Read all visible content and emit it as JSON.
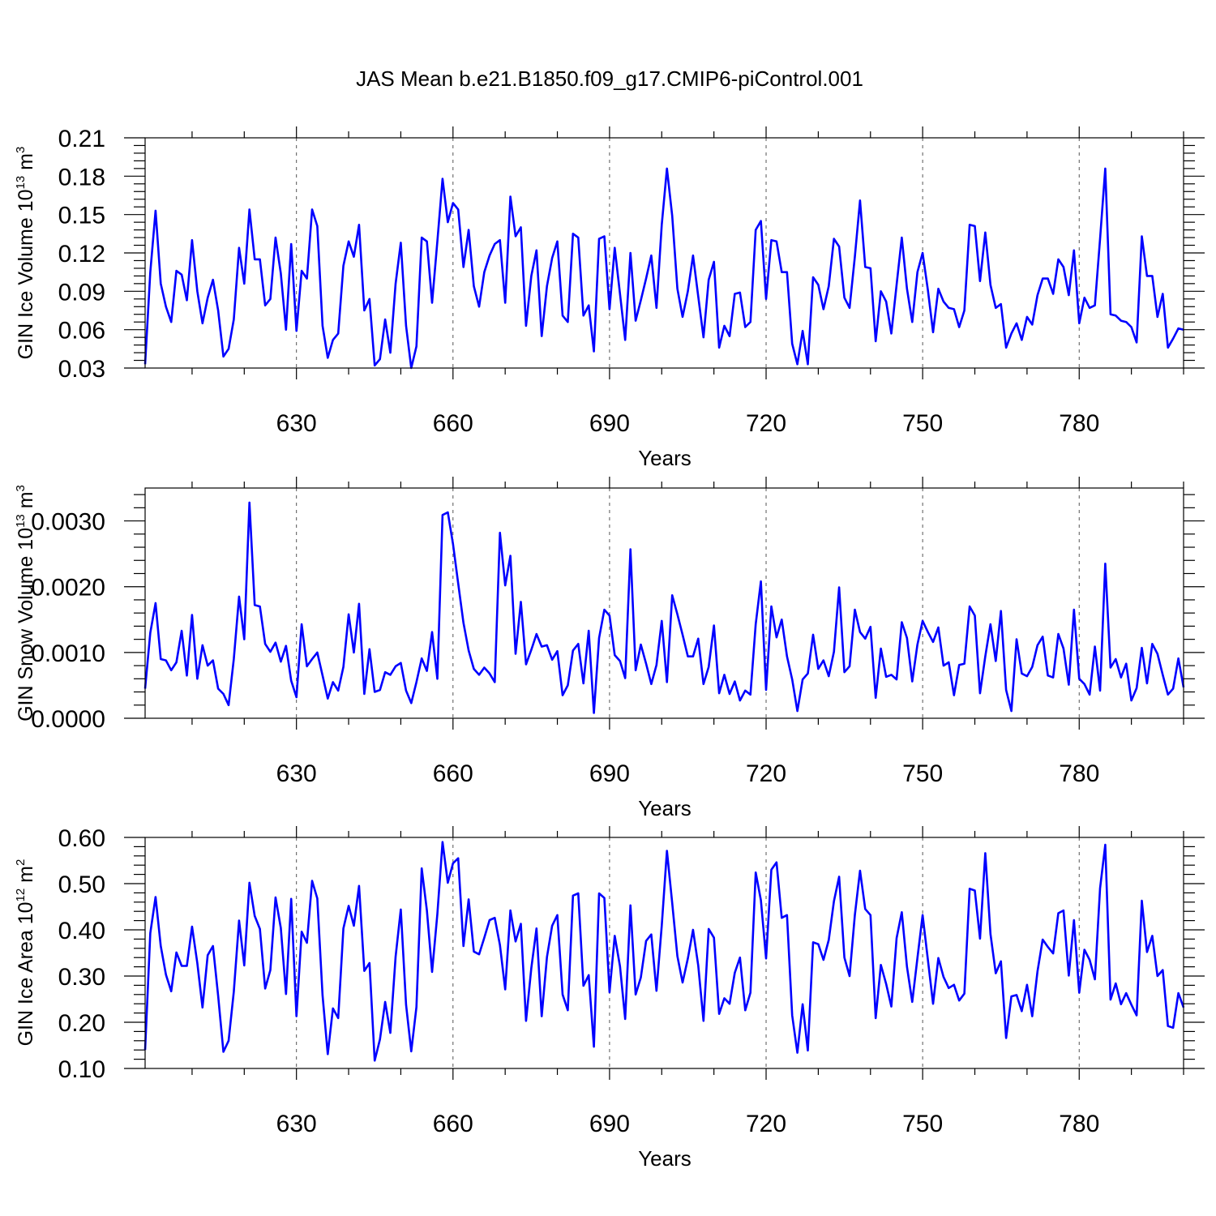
{
  "figure": {
    "title": "JAS Mean b.e21.B1850.f09_g17.CMIP6-piControl.001"
  },
  "chart_data": [
    {
      "type": "line",
      "ylabel_main": "GIN Ice Volume 10",
      "ylabel_exp": "13",
      "ylabel_unit": " m",
      "ylabel_unit_exp": "3",
      "xlabel": "Years",
      "x_start": 601,
      "xlim": [
        601,
        800
      ],
      "ylim": [
        0.03,
        0.21
      ],
      "yticks": [
        "0.03",
        "0.06",
        "0.09",
        "0.12",
        "0.15",
        "0.18",
        "0.21"
      ],
      "xticks": [
        "630",
        "660",
        "690",
        "720",
        "750",
        "780"
      ],
      "color": "#0000ff",
      "values": [
        0.033,
        0.105,
        0.153,
        0.096,
        0.078,
        0.066,
        0.106,
        0.103,
        0.083,
        0.13,
        0.09,
        0.065,
        0.085,
        0.099,
        0.075,
        0.039,
        0.045,
        0.068,
        0.124,
        0.096,
        0.154,
        0.115,
        0.115,
        0.079,
        0.084,
        0.132,
        0.104,
        0.06,
        0.127,
        0.059,
        0.106,
        0.1,
        0.154,
        0.141,
        0.063,
        0.038,
        0.052,
        0.057,
        0.11,
        0.129,
        0.117,
        0.142,
        0.075,
        0.084,
        0.032,
        0.037,
        0.068,
        0.042,
        0.096,
        0.128,
        0.063,
        0.03,
        0.047,
        0.132,
        0.129,
        0.081,
        0.129,
        0.178,
        0.144,
        0.159,
        0.154,
        0.109,
        0.138,
        0.094,
        0.078,
        0.105,
        0.118,
        0.127,
        0.13,
        0.081,
        0.164,
        0.133,
        0.14,
        0.063,
        0.102,
        0.122,
        0.055,
        0.094,
        0.116,
        0.129,
        0.071,
        0.066,
        0.135,
        0.132,
        0.071,
        0.079,
        0.043,
        0.131,
        0.133,
        0.076,
        0.124,
        0.088,
        0.052,
        0.12,
        0.067,
        0.083,
        0.1,
        0.118,
        0.077,
        0.142,
        0.186,
        0.149,
        0.092,
        0.07,
        0.09,
        0.118,
        0.086,
        0.054,
        0.099,
        0.113,
        0.046,
        0.063,
        0.055,
        0.088,
        0.089,
        0.062,
        0.066,
        0.138,
        0.145,
        0.084,
        0.13,
        0.129,
        0.105,
        0.105,
        0.049,
        0.033,
        0.059,
        0.033,
        0.101,
        0.095,
        0.076,
        0.094,
        0.131,
        0.125,
        0.085,
        0.077,
        0.117,
        0.161,
        0.109,
        0.108,
        0.051,
        0.09,
        0.082,
        0.057,
        0.095,
        0.132,
        0.092,
        0.066,
        0.105,
        0.12,
        0.091,
        0.058,
        0.092,
        0.082,
        0.077,
        0.076,
        0.062,
        0.075,
        0.142,
        0.141,
        0.098,
        0.136,
        0.095,
        0.077,
        0.08,
        0.046,
        0.057,
        0.065,
        0.052,
        0.07,
        0.064,
        0.087,
        0.1,
        0.1,
        0.088,
        0.115,
        0.109,
        0.087,
        0.122,
        0.065,
        0.085,
        0.077,
        0.079,
        0.131,
        0.186,
        0.072,
        0.071,
        0.067,
        0.066,
        0.062,
        0.05,
        0.133,
        0.102,
        0.102,
        0.07,
        0.088,
        0.046,
        0.053,
        0.061,
        0.06
      ]
    },
    {
      "type": "line",
      "ylabel_main": "GIN Snow Volume 10",
      "ylabel_exp": "13",
      "ylabel_unit": " m",
      "ylabel_unit_exp": "3",
      "xlabel": "Years",
      "x_start": 601,
      "xlim": [
        601,
        800
      ],
      "ylim": [
        0.0,
        0.0035
      ],
      "yticks": [
        "0.0000",
        "0.0010",
        "0.0020",
        "0.0030"
      ],
      "ytick_values": [
        0.0,
        0.001,
        0.002,
        0.003
      ],
      "xticks": [
        "630",
        "660",
        "690",
        "720",
        "750",
        "780"
      ],
      "color": "#0000ff",
      "values": [
        0.00045,
        0.0013,
        0.00175,
        0.0009,
        0.00088,
        0.00073,
        0.00085,
        0.00133,
        0.00065,
        0.00157,
        0.0006,
        0.00111,
        0.0008,
        0.00088,
        0.00045,
        0.00037,
        0.0002,
        0.0009,
        0.00185,
        0.0012,
        0.00328,
        0.00172,
        0.0017,
        0.00113,
        0.00101,
        0.00115,
        0.00086,
        0.0011,
        0.00057,
        0.00032,
        0.00143,
        0.00079,
        0.0009,
        0.001,
        0.00065,
        0.0003,
        0.00055,
        0.00042,
        0.00078,
        0.00158,
        0.001,
        0.00174,
        0.00037,
        0.00105,
        0.0004,
        0.00043,
        0.0007,
        0.00066,
        0.00079,
        0.00084,
        0.00042,
        0.00023,
        0.00055,
        0.00091,
        0.00072,
        0.00131,
        0.0006,
        0.00309,
        0.00313,
        0.00265,
        0.00205,
        0.00145,
        0.00103,
        0.00075,
        0.00066,
        0.00077,
        0.00068,
        0.00055,
        0.00282,
        0.00202,
        0.00247,
        0.00098,
        0.00177,
        0.00082,
        0.00104,
        0.00128,
        0.00109,
        0.00111,
        0.00089,
        0.00102,
        0.00035,
        0.0005,
        0.00103,
        0.00113,
        0.00053,
        0.00133,
        8e-05,
        0.00122,
        0.00165,
        0.00156,
        0.00096,
        0.00087,
        0.00061,
        0.00257,
        0.00073,
        0.00112,
        0.00083,
        0.00052,
        0.00081,
        0.00148,
        0.00055,
        0.00187,
        0.00158,
        0.00127,
        0.00094,
        0.00094,
        0.00121,
        0.00052,
        0.00078,
        0.00141,
        0.00038,
        0.00066,
        0.00037,
        0.00056,
        0.00027,
        0.00042,
        0.00036,
        0.00143,
        0.00208,
        0.00043,
        0.0017,
        0.00123,
        0.0015,
        0.00094,
        0.00059,
        0.00011,
        0.00059,
        0.00068,
        0.00127,
        0.00075,
        0.00088,
        0.00064,
        0.00101,
        0.00199,
        0.0007,
        0.00079,
        0.00165,
        0.00131,
        0.00121,
        0.00139,
        0.00031,
        0.00106,
        0.00063,
        0.00066,
        0.00059,
        0.00146,
        0.00122,
        0.00056,
        0.00112,
        0.00148,
        0.00131,
        0.00116,
        0.00138,
        0.0008,
        0.00085,
        0.00035,
        0.00081,
        0.00083,
        0.0017,
        0.00156,
        0.00038,
        0.00094,
        0.00143,
        0.00087,
        0.00163,
        0.00043,
        0.00011,
        0.0012,
        0.00068,
        0.00064,
        0.00078,
        0.00111,
        0.00124,
        0.00065,
        0.00062,
        0.00128,
        0.00106,
        0.00051,
        0.00165,
        0.0006,
        0.00052,
        0.00036,
        0.00109,
        0.00042,
        0.00235,
        0.00077,
        0.0009,
        0.00062,
        0.00083,
        0.00027,
        0.00046,
        0.00107,
        0.00053,
        0.00113,
        0.00098,
        0.00066,
        0.00036,
        0.00045,
        0.00091,
        0.00047
      ]
    },
    {
      "type": "line",
      "ylabel_main": "GIN Ice Area 10",
      "ylabel_exp": "12",
      "ylabel_unit": " m",
      "ylabel_unit_exp": "2",
      "xlabel": "Years",
      "x_start": 601,
      "xlim": [
        601,
        800
      ],
      "ylim": [
        0.1,
        0.6
      ],
      "yticks": [
        "0.10",
        "0.20",
        "0.30",
        "0.40",
        "0.50",
        "0.60"
      ],
      "xticks": [
        "630",
        "660",
        "690",
        "720",
        "750",
        "780"
      ],
      "color": "#0000ff",
      "values": [
        0.14,
        0.393,
        0.471,
        0.365,
        0.303,
        0.267,
        0.351,
        0.322,
        0.322,
        0.407,
        0.328,
        0.232,
        0.345,
        0.365,
        0.257,
        0.136,
        0.16,
        0.266,
        0.42,
        0.323,
        0.502,
        0.43,
        0.402,
        0.273,
        0.313,
        0.47,
        0.404,
        0.261,
        0.467,
        0.213,
        0.396,
        0.372,
        0.506,
        0.468,
        0.258,
        0.131,
        0.23,
        0.209,
        0.403,
        0.452,
        0.409,
        0.495,
        0.311,
        0.328,
        0.117,
        0.163,
        0.244,
        0.177,
        0.342,
        0.444,
        0.238,
        0.137,
        0.233,
        0.533,
        0.442,
        0.309,
        0.434,
        0.59,
        0.502,
        0.544,
        0.555,
        0.365,
        0.466,
        0.353,
        0.347,
        0.383,
        0.421,
        0.426,
        0.367,
        0.271,
        0.442,
        0.375,
        0.413,
        0.203,
        0.317,
        0.403,
        0.213,
        0.341,
        0.409,
        0.432,
        0.26,
        0.226,
        0.474,
        0.479,
        0.279,
        0.302,
        0.147,
        0.479,
        0.469,
        0.265,
        0.387,
        0.321,
        0.207,
        0.453,
        0.26,
        0.297,
        0.376,
        0.39,
        0.268,
        0.409,
        0.571,
        0.458,
        0.343,
        0.286,
        0.338,
        0.4,
        0.323,
        0.203,
        0.402,
        0.383,
        0.218,
        0.252,
        0.24,
        0.307,
        0.34,
        0.226,
        0.264,
        0.524,
        0.464,
        0.338,
        0.53,
        0.546,
        0.426,
        0.432,
        0.215,
        0.134,
        0.239,
        0.139,
        0.373,
        0.369,
        0.335,
        0.378,
        0.462,
        0.515,
        0.34,
        0.3,
        0.432,
        0.528,
        0.445,
        0.432,
        0.209,
        0.324,
        0.283,
        0.234,
        0.382,
        0.438,
        0.32,
        0.244,
        0.339,
        0.432,
        0.335,
        0.24,
        0.339,
        0.298,
        0.274,
        0.281,
        0.247,
        0.262,
        0.489,
        0.485,
        0.381,
        0.566,
        0.391,
        0.306,
        0.332,
        0.166,
        0.256,
        0.259,
        0.224,
        0.281,
        0.213,
        0.31,
        0.379,
        0.363,
        0.349,
        0.436,
        0.442,
        0.301,
        0.421,
        0.264,
        0.357,
        0.335,
        0.293,
        0.49,
        0.584,
        0.249,
        0.284,
        0.239,
        0.263,
        0.238,
        0.215,
        0.463,
        0.352,
        0.387,
        0.3,
        0.313,
        0.192,
        0.188,
        0.263,
        0.232
      ]
    }
  ]
}
